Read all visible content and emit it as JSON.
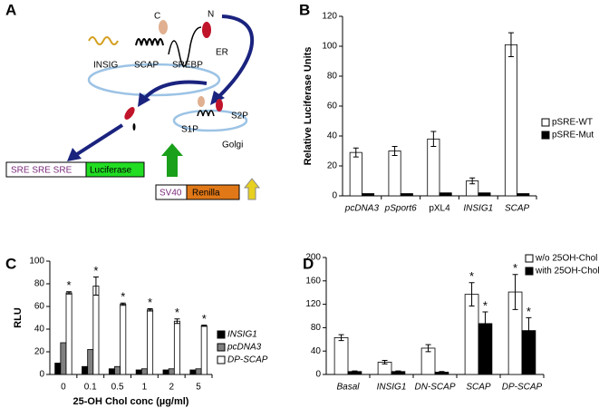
{
  "panel_a": {
    "label": "A",
    "c_term": "C",
    "n_term": "N",
    "er": "ER",
    "insig": "INSIG",
    "scap": "SCAP",
    "srebp": "SREBP",
    "s2p": "S2P",
    "s1p": "S1P",
    "golgi": "Golgi",
    "sre": "SRE SRE SRE",
    "luciferase": "Luciferase",
    "sv40": "SV40",
    "renilla": "Renilla"
  },
  "chart_data": [
    {
      "type": "bar",
      "panel": "B",
      "y_label": "Relative Luciferase Units",
      "categories": [
        "pcDNA3",
        "pSport6",
        "pXL4",
        "INSIG1",
        "SCAP"
      ],
      "series": [
        {
          "name": "pSRE-WT",
          "color": "#ffffff",
          "values": [
            29,
            30,
            38,
            10,
            101
          ],
          "errors": [
            3,
            3,
            5,
            2,
            8
          ]
        },
        {
          "name": "pSRE-Mut",
          "color": "#000000",
          "values": [
            1.5,
            1.5,
            2,
            2,
            1.5
          ]
        }
      ],
      "ylim": [
        0,
        120
      ],
      "yticks": [
        0,
        20,
        40,
        60,
        80,
        100,
        120
      ]
    },
    {
      "type": "bar",
      "panel": "C",
      "y_label": "RLU",
      "x_label": "25-OH Chol conc (µg/ml)",
      "categories": [
        "0",
        "0.1",
        "0.5",
        "1",
        "2",
        "5"
      ],
      "series": [
        {
          "name": "INSIG1",
          "color": "#000000",
          "values": [
            10,
            7,
            5,
            4,
            4,
            4
          ]
        },
        {
          "name": "pcDNA3",
          "color": "#808080",
          "values": [
            28,
            22,
            7,
            5,
            5,
            5
          ]
        },
        {
          "name": "DP-SCAP",
          "color": "#ffffff",
          "values": [
            72,
            78,
            62,
            57,
            47,
            43
          ],
          "errors": [
            1,
            8,
            1,
            1,
            2,
            0.5
          ],
          "significance": [
            "*",
            "*",
            "*",
            "*",
            "*",
            "*"
          ]
        }
      ],
      "ylim": [
        0,
        100
      ],
      "yticks": [
        0,
        20,
        40,
        60,
        80,
        100
      ]
    },
    {
      "type": "bar",
      "panel": "D",
      "categories": [
        "Basal",
        "INSIG1",
        "DN-SCAP",
        "SCAP",
        "DP-SCAP"
      ],
      "series": [
        {
          "name": "w/o 25OH-Chol",
          "color": "#ffffff",
          "values": [
            63,
            21,
            45,
            137,
            141
          ],
          "errors": [
            5,
            3,
            6,
            20,
            30
          ],
          "significance": [
            null,
            null,
            null,
            "*",
            "*"
          ]
        },
        {
          "name": "with 25OH-Chol",
          "color": "#000000",
          "values": [
            5,
            5,
            4,
            87,
            75
          ],
          "errors": [
            1,
            1,
            1,
            20,
            22
          ],
          "significance": [
            null,
            null,
            null,
            "*",
            "*"
          ]
        }
      ],
      "ylim": [
        0,
        200
      ],
      "yticks": [
        0,
        40,
        80,
        120,
        160,
        200
      ]
    }
  ]
}
